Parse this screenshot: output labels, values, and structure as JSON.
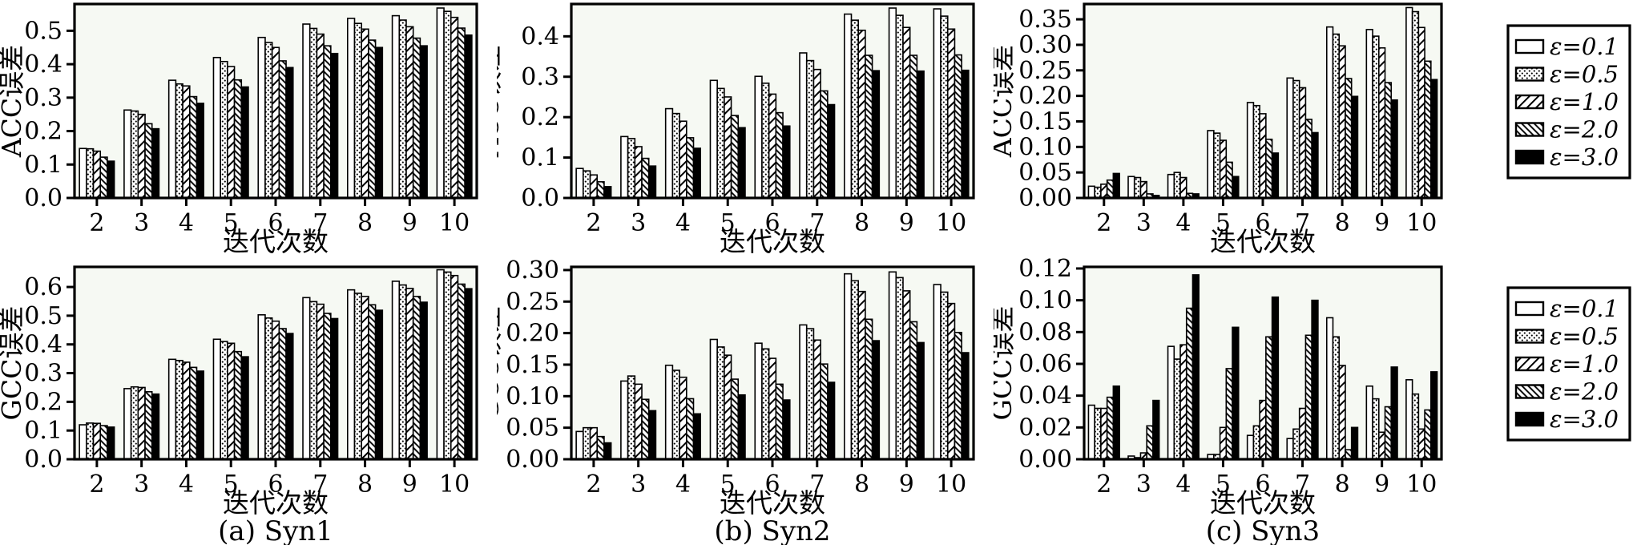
{
  "figure_title": "",
  "colors": {
    "plot_bg": "#f6f9f3",
    "ink": "#000000",
    "page_bg": "#ffffff"
  },
  "legend": {
    "position": "right",
    "items": [
      {
        "label": "ε=0.1",
        "hatch": "none"
      },
      {
        "label": "ε=0.5",
        "hatch": "dots"
      },
      {
        "label": "ε=1.0",
        "hatch": "forward"
      },
      {
        "label": "ε=2.0",
        "hatch": "backward"
      },
      {
        "label": "ε=3.0",
        "hatch": "solid"
      }
    ]
  },
  "chart_data": [
    {
      "type": "bar",
      "ylabel": "ACC误差",
      "xlabel": "迭代次数",
      "caption": "",
      "categories": [
        "2",
        "3",
        "4",
        "5",
        "6",
        "7",
        "8",
        "9",
        "10"
      ],
      "yticks": [
        "0.0",
        "0.1",
        "0.2",
        "0.3",
        "0.4",
        "0.5"
      ],
      "ylim": [
        0,
        0.58
      ],
      "grid": false,
      "series": [
        {
          "name": "ε=0.1",
          "hatch": "none",
          "values": [
            0.148,
            0.263,
            0.352,
            0.42,
            0.48,
            0.52,
            0.537,
            0.545,
            0.568
          ]
        },
        {
          "name": "ε=0.5",
          "hatch": "dots",
          "values": [
            0.147,
            0.26,
            0.341,
            0.408,
            0.465,
            0.507,
            0.522,
            0.532,
            0.558
          ]
        },
        {
          "name": "ε=1.0",
          "hatch": "forward",
          "values": [
            0.14,
            0.25,
            0.335,
            0.393,
            0.45,
            0.49,
            0.505,
            0.512,
            0.54
          ]
        },
        {
          "name": "ε=2.0",
          "hatch": "backward",
          "values": [
            0.122,
            0.222,
            0.303,
            0.353,
            0.41,
            0.455,
            0.472,
            0.478,
            0.508
          ]
        },
        {
          "name": "ε=3.0",
          "hatch": "solid",
          "values": [
            0.11,
            0.207,
            0.283,
            0.332,
            0.39,
            0.432,
            0.45,
            0.455,
            0.487
          ]
        }
      ]
    },
    {
      "type": "bar",
      "ylabel": "ACC误差",
      "xlabel": "迭代次数",
      "caption": "",
      "categories": [
        "2",
        "3",
        "4",
        "5",
        "6",
        "7",
        "8",
        "9",
        "10"
      ],
      "yticks": [
        "0.0",
        "0.1",
        "0.2",
        "0.3",
        "0.4"
      ],
      "ylim": [
        0,
        0.48
      ],
      "grid": false,
      "series": [
        {
          "name": "ε=0.1",
          "hatch": "none",
          "values": [
            0.073,
            0.152,
            0.221,
            0.291,
            0.301,
            0.359,
            0.455,
            0.47,
            0.468
          ]
        },
        {
          "name": "ε=0.5",
          "hatch": "dots",
          "values": [
            0.067,
            0.147,
            0.209,
            0.271,
            0.284,
            0.34,
            0.44,
            0.452,
            0.45
          ]
        },
        {
          "name": "ε=1.0",
          "hatch": "forward",
          "values": [
            0.057,
            0.127,
            0.19,
            0.25,
            0.257,
            0.318,
            0.415,
            0.422,
            0.418
          ]
        },
        {
          "name": "ε=2.0",
          "hatch": "backward",
          "values": [
            0.04,
            0.098,
            0.149,
            0.204,
            0.211,
            0.265,
            0.353,
            0.353,
            0.354
          ]
        },
        {
          "name": "ε=3.0",
          "hatch": "solid",
          "values": [
            0.028,
            0.079,
            0.123,
            0.174,
            0.178,
            0.231,
            0.315,
            0.314,
            0.316
          ]
        }
      ]
    },
    {
      "type": "bar",
      "ylabel": "ACC误差",
      "xlabel": "迭代次数",
      "caption": "",
      "categories": [
        "2",
        "3",
        "4",
        "5",
        "6",
        "7",
        "8",
        "9",
        "10"
      ],
      "yticks": [
        "0.00",
        "0.05",
        "0.10",
        "0.15",
        "0.20",
        "0.25",
        "0.30",
        "0.35"
      ],
      "ylim": [
        0,
        0.38
      ],
      "grid": false,
      "series": [
        {
          "name": "ε=0.1",
          "hatch": "none",
          "values": [
            0.023,
            0.042,
            0.046,
            0.132,
            0.187,
            0.235,
            0.335,
            0.33,
            0.373
          ]
        },
        {
          "name": "ε=0.5",
          "hatch": "dots",
          "values": [
            0.021,
            0.04,
            0.05,
            0.127,
            0.181,
            0.23,
            0.321,
            0.317,
            0.365
          ]
        },
        {
          "name": "ε=1.0",
          "hatch": "forward",
          "values": [
            0.027,
            0.032,
            0.04,
            0.113,
            0.165,
            0.216,
            0.298,
            0.294,
            0.334
          ]
        },
        {
          "name": "ε=2.0",
          "hatch": "backward",
          "values": [
            0.035,
            0.008,
            0.009,
            0.07,
            0.115,
            0.154,
            0.234,
            0.226,
            0.268
          ]
        },
        {
          "name": "ε=3.0",
          "hatch": "solid",
          "values": [
            0.048,
            0.005,
            0.008,
            0.042,
            0.088,
            0.128,
            0.199,
            0.192,
            0.232
          ]
        }
      ]
    },
    {
      "type": "bar",
      "ylabel": "GCC误差",
      "xlabel": "迭代次数",
      "caption": "(a) Syn1",
      "categories": [
        "2",
        "3",
        "4",
        "5",
        "6",
        "7",
        "8",
        "9",
        "10"
      ],
      "yticks": [
        "0.0",
        "0.1",
        "0.2",
        "0.3",
        "0.4",
        "0.5",
        "0.6"
      ],
      "ylim": [
        0,
        0.67
      ],
      "grid": false,
      "series": [
        {
          "name": "ε=0.1",
          "hatch": "none",
          "values": [
            0.12,
            0.246,
            0.348,
            0.418,
            0.503,
            0.563,
            0.59,
            0.62,
            0.66
          ]
        },
        {
          "name": "ε=0.5",
          "hatch": "dots",
          "values": [
            0.126,
            0.252,
            0.344,
            0.41,
            0.492,
            0.549,
            0.578,
            0.607,
            0.652
          ]
        },
        {
          "name": "ε=1.0",
          "hatch": "forward",
          "values": [
            0.125,
            0.25,
            0.338,
            0.404,
            0.481,
            0.54,
            0.567,
            0.595,
            0.64
          ]
        },
        {
          "name": "ε=2.0",
          "hatch": "backward",
          "values": [
            0.117,
            0.235,
            0.32,
            0.375,
            0.455,
            0.508,
            0.538,
            0.567,
            0.61
          ]
        },
        {
          "name": "ε=3.0",
          "hatch": "solid",
          "values": [
            0.112,
            0.227,
            0.307,
            0.357,
            0.438,
            0.49,
            0.519,
            0.547,
            0.594
          ]
        }
      ]
    },
    {
      "type": "bar",
      "ylabel": "GCC误差",
      "xlabel": "迭代次数",
      "caption": "(b) Syn2",
      "categories": [
        "2",
        "3",
        "4",
        "5",
        "6",
        "7",
        "8",
        "9",
        "10"
      ],
      "yticks": [
        "0.00",
        "0.05",
        "0.10",
        "0.15",
        "0.20",
        "0.25",
        "0.30"
      ],
      "ylim": [
        0,
        0.305
      ],
      "grid": false,
      "series": [
        {
          "name": "ε=0.1",
          "hatch": "none",
          "values": [
            0.044,
            0.124,
            0.149,
            0.19,
            0.184,
            0.213,
            0.294,
            0.297,
            0.277
          ]
        },
        {
          "name": "ε=0.5",
          "hatch": "dots",
          "values": [
            0.05,
            0.132,
            0.141,
            0.178,
            0.175,
            0.207,
            0.283,
            0.288,
            0.265
          ]
        },
        {
          "name": "ε=1.0",
          "hatch": "forward",
          "values": [
            0.05,
            0.119,
            0.13,
            0.165,
            0.16,
            0.189,
            0.266,
            0.267,
            0.247
          ]
        },
        {
          "name": "ε=2.0",
          "hatch": "backward",
          "values": [
            0.036,
            0.095,
            0.096,
            0.127,
            0.119,
            0.151,
            0.222,
            0.218,
            0.201
          ]
        },
        {
          "name": "ε=3.0",
          "hatch": "solid",
          "values": [
            0.026,
            0.077,
            0.072,
            0.102,
            0.094,
            0.122,
            0.188,
            0.185,
            0.169
          ]
        }
      ]
    },
    {
      "type": "bar",
      "ylabel": "GCC误差",
      "xlabel": "迭代次数",
      "caption": "(c) Syn3",
      "categories": [
        "2",
        "3",
        "4",
        "5",
        "6",
        "7",
        "8",
        "9",
        "10"
      ],
      "yticks": [
        "0.00",
        "0.02",
        "0.04",
        "0.06",
        "0.08",
        "0.10",
        "0.12"
      ],
      "ylim": [
        0,
        0.121
      ],
      "grid": false,
      "series": [
        {
          "name": "ε=0.1",
          "hatch": "none",
          "values": [
            0.034,
            0.002,
            0.071,
            0.003,
            0.015,
            0.013,
            0.089,
            0.046,
            0.05
          ]
        },
        {
          "name": "ε=0.5",
          "hatch": "dots",
          "values": [
            0.032,
            0.001,
            0.063,
            0.003,
            0.021,
            0.019,
            0.077,
            0.038,
            0.041
          ]
        },
        {
          "name": "ε=1.0",
          "hatch": "forward",
          "values": [
            0.032,
            0.004,
            0.072,
            0.02,
            0.037,
            0.032,
            0.059,
            0.017,
            0.019
          ]
        },
        {
          "name": "ε=2.0",
          "hatch": "backward",
          "values": [
            0.039,
            0.021,
            0.095,
            0.057,
            0.077,
            0.078,
            0.006,
            0.033,
            0.031
          ]
        },
        {
          "name": "ε=3.0",
          "hatch": "solid",
          "values": [
            0.046,
            0.037,
            0.116,
            0.083,
            0.102,
            0.1,
            0.02,
            0.058,
            0.055
          ]
        }
      ]
    }
  ]
}
